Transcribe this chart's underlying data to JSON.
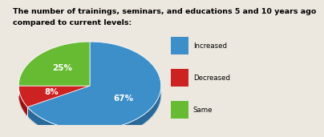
{
  "title_line1": "The number of trainings, seminars, and educations 5 and 10 years ago",
  "title_line2": "compared to current levels:",
  "slices": [
    67,
    8,
    25
  ],
  "pct_labels": [
    "67%",
    "8%",
    "25%"
  ],
  "colors": [
    "#3d8fc9",
    "#cc2222",
    "#66bb33"
  ],
  "shadow_colors": [
    "#2a6a9a",
    "#991111",
    "#449922"
  ],
  "legend_labels": [
    "Increased",
    "Decreased",
    "Same"
  ],
  "background_color": "#ede8df",
  "title_fontsize": 6.8,
  "label_fontsize": 7.5,
  "startangle": 90,
  "shadow_depth": 0.06
}
